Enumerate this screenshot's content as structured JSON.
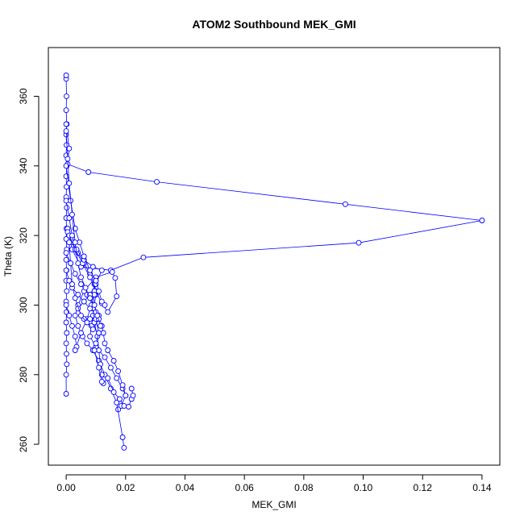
{
  "chart_data": {
    "type": "line",
    "title": "ATOM2 Southbound MEK_GMI",
    "xlabel": "MEK_GMI",
    "ylabel": "Theta (K)",
    "xlim": [
      -0.006,
      0.146
    ],
    "ylim": [
      254,
      374
    ],
    "xticks": [
      0.0,
      0.02,
      0.04,
      0.06,
      0.08,
      0.1,
      0.12,
      0.14
    ],
    "xtick_labels": [
      "0.00",
      "0.02",
      "0.04",
      "0.06",
      "0.08",
      "0.10",
      "0.12",
      "0.14"
    ],
    "yticks": [
      260,
      280,
      300,
      320,
      340,
      360
    ],
    "ytick_labels": [
      "260",
      "280",
      "300",
      "320",
      "340",
      "360"
    ],
    "grid": false,
    "legend": "none",
    "color": "#0000ff",
    "marker": "open-circle",
    "series": [
      {
        "points": [
          [
            0.0,
            274.5
          ],
          [
            0.0,
            280.0
          ],
          [
            0.0002,
            283.0
          ],
          [
            0.0001,
            286.0
          ],
          [
            0.0,
            289.0
          ],
          [
            0.0002,
            292.0
          ],
          [
            0.0,
            295.0
          ],
          [
            0.0001,
            298.0
          ],
          [
            0.0,
            301.0
          ],
          [
            0.0002,
            304.0
          ],
          [
            0.0,
            307.0
          ],
          [
            0.0001,
            310.0
          ],
          [
            0.0,
            313.0
          ],
          [
            0.0002,
            316.0
          ],
          [
            0.0,
            319.0
          ],
          [
            0.0001,
            322.0
          ],
          [
            0.0,
            325.0
          ],
          [
            0.0002,
            328.0
          ],
          [
            0.0,
            331.0
          ],
          [
            0.0001,
            334.0
          ],
          [
            0.0,
            337.0
          ],
          [
            0.0002,
            340.0
          ],
          [
            0.0,
            343.0
          ],
          [
            0.0001,
            346.0
          ],
          [
            0.0,
            349.0
          ],
          [
            0.0002,
            352.0
          ],
          [
            0.0,
            356.0
          ],
          [
            0.0001,
            360.0
          ],
          [
            0.0,
            365.0
          ],
          [
            0.0,
            366.0
          ]
        ]
      },
      {
        "points": [
          [
            0.0,
            352.0
          ],
          [
            0.001,
            345.0
          ],
          [
            0.0005,
            340.5
          ],
          [
            0.0075,
            338.2
          ],
          [
            0.0305,
            335.4
          ],
          [
            0.094,
            329.0
          ],
          [
            0.14,
            324.3
          ],
          [
            0.0985,
            317.9
          ],
          [
            0.026,
            313.7
          ],
          [
            0.015,
            310.0
          ],
          [
            0.005,
            311.0
          ],
          [
            0.002,
            316.0
          ],
          [
            0.0005,
            322.0
          ]
        ]
      },
      {
        "points": [
          [
            0.0005,
            321.0
          ],
          [
            0.002,
            318.0
          ],
          [
            0.004,
            315.0
          ],
          [
            0.006,
            312.0
          ],
          [
            0.008,
            309.0
          ],
          [
            0.0095,
            306.0
          ],
          [
            0.01,
            303.0
          ],
          [
            0.0095,
            300.0
          ],
          [
            0.009,
            297.0
          ],
          [
            0.0085,
            294.0
          ],
          [
            0.008,
            291.0
          ],
          [
            0.01,
            288.0
          ],
          [
            0.013,
            285.0
          ],
          [
            0.015,
            282.0
          ],
          [
            0.017,
            279.0
          ],
          [
            0.019,
            276.0
          ],
          [
            0.02,
            274.0
          ],
          [
            0.0185,
            271.0
          ],
          [
            0.0175,
            270.0
          ]
        ]
      },
      {
        "points": [
          [
            0.0,
            315.0
          ],
          [
            0.0015,
            312.0
          ],
          [
            0.003,
            309.0
          ],
          [
            0.005,
            306.0
          ],
          [
            0.007,
            303.0
          ],
          [
            0.009,
            300.0
          ],
          [
            0.011,
            297.0
          ],
          [
            0.012,
            294.0
          ],
          [
            0.0125,
            292.0
          ],
          [
            0.013,
            289.0
          ],
          [
            0.014,
            287.0
          ],
          [
            0.016,
            284.0
          ],
          [
            0.0175,
            281.0
          ],
          [
            0.019,
            277.0
          ],
          [
            0.02,
            274.0
          ]
        ]
      },
      {
        "points": [
          [
            0.001,
            320.0
          ],
          [
            0.003,
            316.0
          ],
          [
            0.0055,
            312.0
          ],
          [
            0.008,
            308.0
          ],
          [
            0.01,
            304.0
          ],
          [
            0.012,
            300.5
          ],
          [
            0.014,
            298.0
          ],
          [
            0.017,
            302.5
          ],
          [
            0.0165,
            307.8
          ],
          [
            0.0155,
            309.5
          ],
          [
            0.01,
            308.0
          ],
          [
            0.006,
            304.0
          ],
          [
            0.004,
            300.0
          ],
          [
            0.003,
            297.0
          ],
          [
            0.004,
            294.0
          ],
          [
            0.0055,
            291.0
          ],
          [
            0.007,
            289.0
          ],
          [
            0.009,
            287.0
          ],
          [
            0.011,
            284.0
          ],
          [
            0.013,
            280.0
          ],
          [
            0.015,
            276.0
          ],
          [
            0.017,
            272.0
          ],
          [
            0.019,
            262.0
          ],
          [
            0.0195,
            259.0
          ]
        ]
      },
      {
        "points": [
          [
            0.0,
            300.0
          ],
          [
            0.001,
            297.0
          ],
          [
            0.002,
            294.0
          ],
          [
            0.003,
            291.0
          ],
          [
            0.0035,
            288.0
          ],
          [
            0.003,
            287.0
          ],
          [
            0.005,
            292.0
          ],
          [
            0.007,
            296.0
          ],
          [
            0.0085,
            300.0
          ],
          [
            0.0095,
            304.0
          ],
          [
            0.01,
            307.0
          ],
          [
            0.0095,
            303.0
          ],
          [
            0.009,
            299.0
          ],
          [
            0.0095,
            295.0
          ],
          [
            0.0105,
            291.0
          ],
          [
            0.011,
            287.0
          ],
          [
            0.0115,
            283.0
          ],
          [
            0.012,
            280.0
          ],
          [
            0.0125,
            277.5
          ],
          [
            0.014,
            279.0
          ],
          [
            0.016,
            275.0
          ],
          [
            0.018,
            273.0
          ],
          [
            0.0195,
            271.0
          ],
          [
            0.021,
            270.8
          ],
          [
            0.022,
            273.0
          ],
          [
            0.0225,
            274.0
          ],
          [
            0.022,
            276.0
          ]
        ]
      },
      {
        "points": [
          [
            0.0,
            330.0
          ],
          [
            0.001,
            325.0
          ],
          [
            0.002,
            320.0
          ],
          [
            0.0035,
            316.0
          ],
          [
            0.006,
            313.0
          ],
          [
            0.009,
            311.0
          ],
          [
            0.012,
            310.0
          ],
          [
            0.01,
            306.0
          ],
          [
            0.008,
            303.0
          ],
          [
            0.006,
            301.0
          ],
          [
            0.004,
            299.0
          ],
          [
            0.006,
            296.0
          ],
          [
            0.008,
            296.0
          ],
          [
            0.01,
            296.0
          ],
          [
            0.011,
            292.0
          ],
          [
            0.01,
            289.0
          ],
          [
            0.0095,
            287.0
          ],
          [
            0.011,
            282.0
          ],
          [
            0.012,
            278.0
          ]
        ]
      },
      {
        "points": [
          [
            0.0,
            310.0
          ],
          [
            0.001,
            307.0
          ],
          [
            0.002,
            305.0
          ],
          [
            0.004,
            303.0
          ],
          [
            0.006,
            301.0
          ],
          [
            0.008,
            299.0
          ],
          [
            0.01,
            298.0
          ],
          [
            0.011,
            296.0
          ],
          [
            0.009,
            293.0
          ],
          [
            0.007,
            295.0
          ],
          [
            0.005,
            297.0
          ],
          [
            0.003,
            302.0
          ],
          [
            0.002,
            306.0
          ],
          [
            0.0015,
            312.0
          ],
          [
            0.001,
            318.0
          ]
        ]
      },
      {
        "points": [
          [
            0.0,
            340.0
          ],
          [
            0.0015,
            330.0
          ],
          [
            0.003,
            322.0
          ],
          [
            0.0045,
            318.0
          ],
          [
            0.006,
            314.0
          ],
          [
            0.008,
            310.0
          ],
          [
            0.01,
            307.0
          ],
          [
            0.011,
            304.0
          ],
          [
            0.012,
            301.0
          ],
          [
            0.013,
            300.0
          ]
        ]
      },
      {
        "points": [
          [
            0.0,
            350.0
          ],
          [
            0.0005,
            342.0
          ],
          [
            0.001,
            335.0
          ],
          [
            0.002,
            326.0
          ],
          [
            0.003,
            318.0
          ],
          [
            0.004,
            312.0
          ],
          [
            0.005,
            308.0
          ],
          [
            0.0065,
            305.0
          ],
          [
            0.008,
            302.0
          ],
          [
            0.0095,
            300.0
          ],
          [
            0.0105,
            297.0
          ],
          [
            0.0115,
            294.0
          ]
        ]
      }
    ]
  }
}
